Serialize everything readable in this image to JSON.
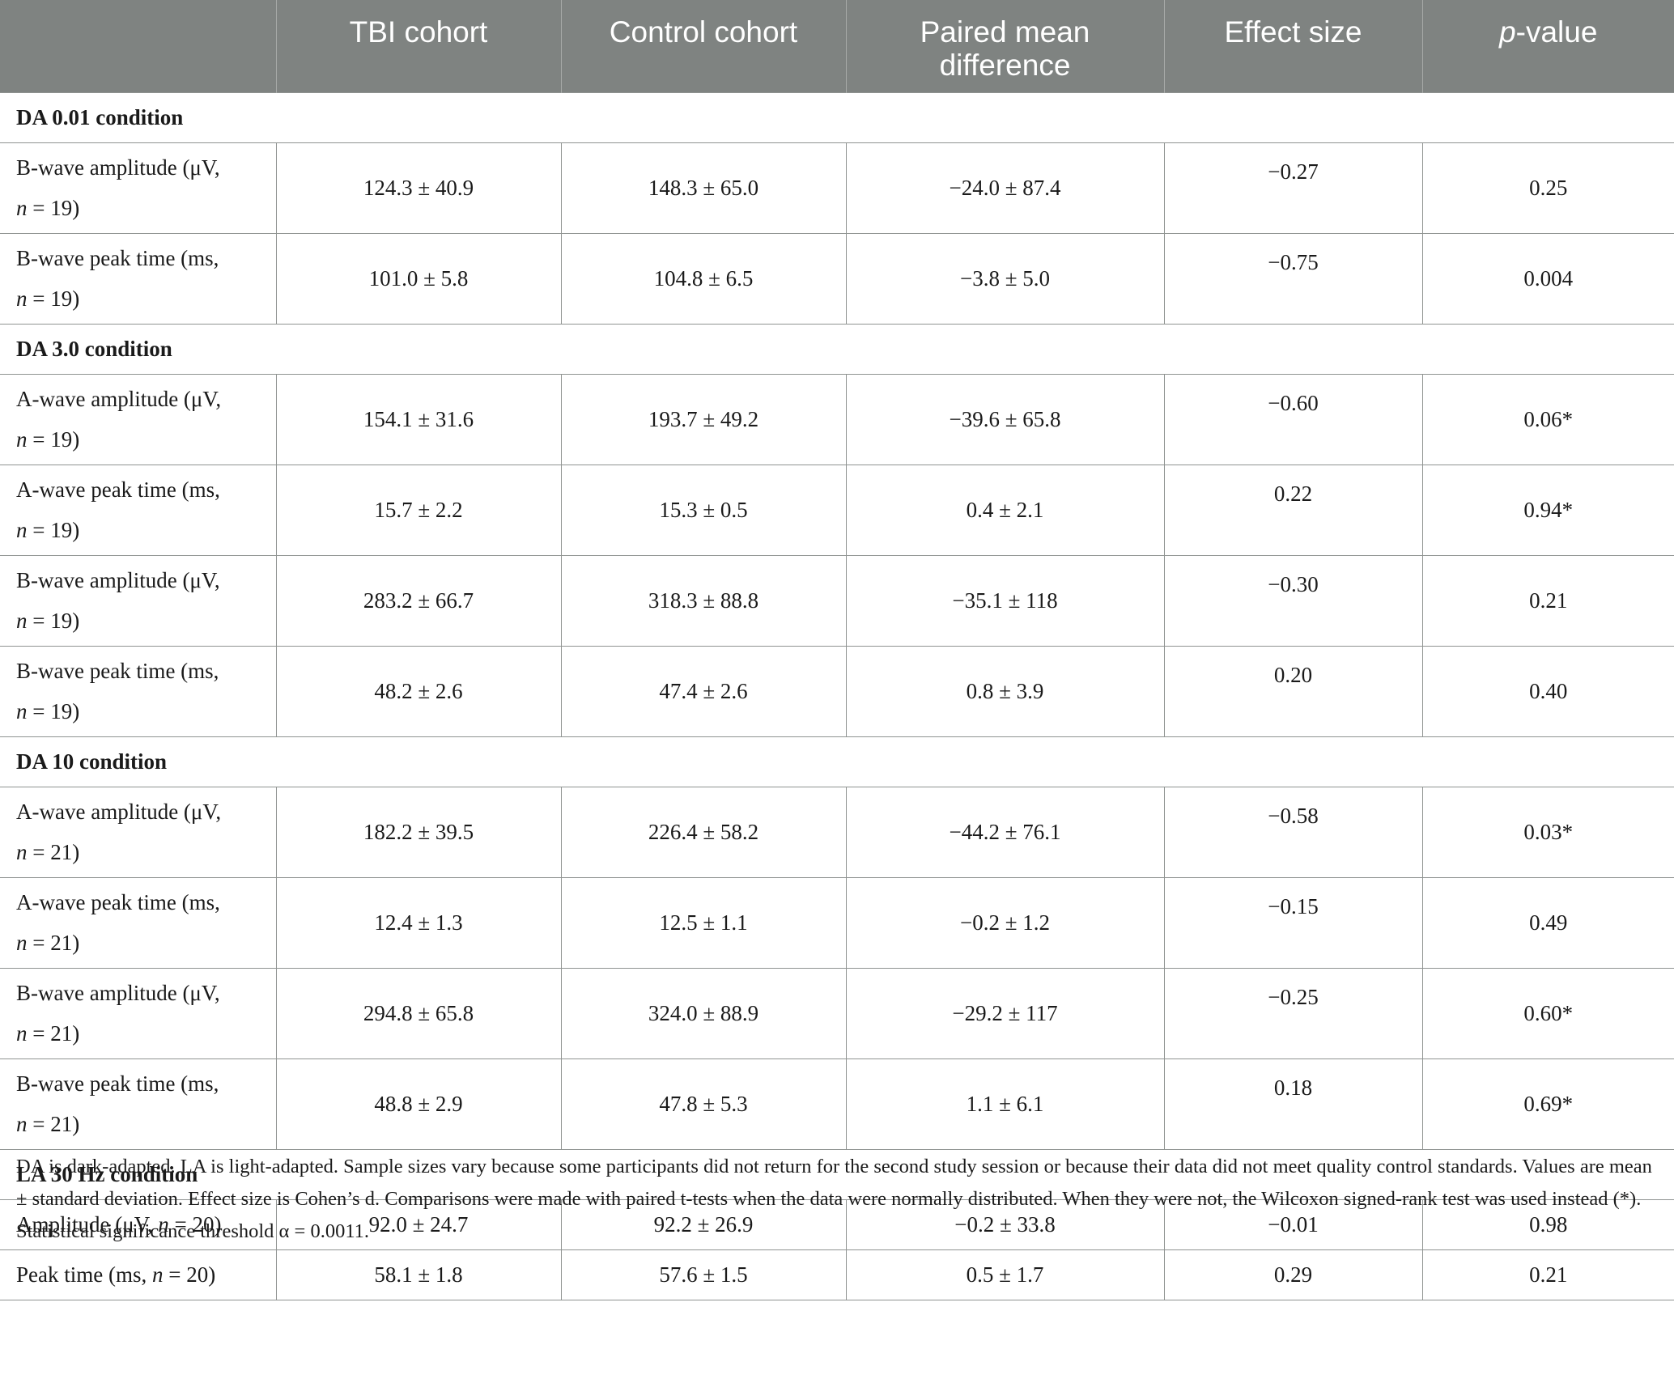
{
  "header": {
    "col0": "",
    "col1": "TBI cohort",
    "col2": "Control cohort",
    "col3_line1": "Paired mean",
    "col3_line2": "difference",
    "col4": "Effect size",
    "col5_italic": "p",
    "col5_rest": "-value"
  },
  "sections": [
    {
      "title": "DA 0.01 condition",
      "rows": [
        {
          "label_a": "B-wave amplitude (μV,",
          "label_n": "n",
          "label_b": " = 19)",
          "tbi": "124.3 ± 40.9",
          "control": "148.3 ± 65.0",
          "diff": "−24.0 ± 87.4",
          "effect": "−0.27",
          "p": "0.25"
        },
        {
          "label_a": "B-wave peak time (ms,",
          "label_n": "n",
          "label_b": " = 19)",
          "tbi": "101.0 ± 5.8",
          "control": "104.8 ± 6.5",
          "diff": "−3.8 ± 5.0",
          "effect": "−0.75",
          "p": "0.004"
        }
      ]
    },
    {
      "title": "DA 3.0 condition",
      "rows": [
        {
          "label_a": "A-wave amplitude (μV,",
          "label_n": "n",
          "label_b": " = 19)",
          "tbi": "154.1 ± 31.6",
          "control": "193.7 ± 49.2",
          "diff": "−39.6 ± 65.8",
          "effect": "−0.60",
          "p": "0.06*"
        },
        {
          "label_a": "A-wave peak time (ms,",
          "label_n": "n",
          "label_b": " = 19)",
          "tbi": "15.7 ± 2.2",
          "control": "15.3 ± 0.5",
          "diff": "0.4 ± 2.1",
          "effect": "0.22",
          "p": "0.94*"
        },
        {
          "label_a": "B-wave amplitude (μV,",
          "label_n": "n",
          "label_b": " = 19)",
          "tbi": "283.2 ± 66.7",
          "control": "318.3 ± 88.8",
          "diff": "−35.1 ± 118",
          "effect": "−0.30",
          "p": "0.21"
        },
        {
          "label_a": "B-wave peak time (ms,",
          "label_n": "n",
          "label_b": " = 19)",
          "tbi": "48.2 ± 2.6",
          "control": "47.4 ± 2.6",
          "diff": "0.8 ± 3.9",
          "effect": "0.20",
          "p": "0.40"
        }
      ]
    },
    {
      "title": "DA 10 condition",
      "rows": [
        {
          "label_a": "A-wave amplitude (μV,",
          "label_n": "n",
          "label_b": " = 21)",
          "tbi": "182.2 ± 39.5",
          "control": "226.4 ± 58.2",
          "diff": "−44.2 ± 76.1",
          "effect": "−0.58",
          "p": "0.03*"
        },
        {
          "label_a": "A-wave peak time (ms,",
          "label_n": "n",
          "label_b": " = 21)",
          "tbi": "12.4 ± 1.3",
          "control": "12.5 ± 1.1",
          "diff": "−0.2 ± 1.2",
          "effect": "−0.15",
          "p": "0.49"
        },
        {
          "label_a": "B-wave amplitude (μV,",
          "label_n": "n",
          "label_b": " = 21)",
          "tbi": "294.8 ± 65.8",
          "control": "324.0 ± 88.9",
          "diff": "−29.2 ± 117",
          "effect": "−0.25",
          "p": "0.60*"
        },
        {
          "label_a": "B-wave peak time (ms,",
          "label_n": "n",
          "label_b": " = 21)",
          "tbi": "48.8 ± 2.9",
          "control": "47.8 ± 5.3",
          "diff": "1.1 ± 6.1",
          "effect": "0.18",
          "p": "0.69*"
        }
      ]
    },
    {
      "title": "LA 30 Hz condition",
      "rows": [
        {
          "label_a": "Amplitude (μV, ",
          "label_n": "n",
          "label_b": " = 20)",
          "single": true,
          "tbi": "92.0 ± 24.7",
          "control": "92.2 ± 26.9",
          "diff": "−0.2 ± 33.8",
          "effect": "−0.01",
          "p": "0.98"
        },
        {
          "label_a": "Peak time (ms, ",
          "label_n": "n",
          "label_b": " = 20)",
          "single": true,
          "tbi": "58.1 ± 1.8",
          "control": "57.6 ± 1.5",
          "diff": "0.5 ± 1.7",
          "effect": "0.29",
          "p": "0.21"
        }
      ]
    }
  ],
  "footnote": "DA is dark-adapted. LA is light-adapted. Sample sizes vary because some participants did not return for the second study session or because their data did not meet quality control standards. Values are mean ± standard deviation. Effect size is Cohen’s d. Comparisons were made with paired t-tests when the data were normally distributed. When they were not, the Wilcoxon signed-rank test was used instead (*). Statistical significance threshold α = 0.0011.",
  "colors": {
    "header_bg": "#7f8381",
    "header_text": "#ffffff",
    "grid": "#8f9391",
    "text": "#1a1a1a"
  }
}
